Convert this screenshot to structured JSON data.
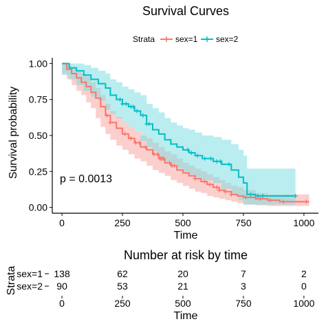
{
  "chart_data": [
    {
      "type": "line",
      "subtype": "kaplan-meier",
      "title": "Survival Curves",
      "xlabel": "Time",
      "ylabel": "Survival probability",
      "xlim": [
        -40,
        1060
      ],
      "ylim": [
        -0.04,
        1.04
      ],
      "xticks": [
        0,
        250,
        500,
        750,
        1000
      ],
      "yticks": [
        0.0,
        0.25,
        0.5,
        0.75,
        1.0
      ],
      "ytick_labels": [
        "0.00",
        "0.25",
        "0.50",
        "0.75",
        "1.00"
      ],
      "legend": {
        "title": "Strata",
        "position": "top"
      },
      "annotation": "p = 0.0013",
      "series": [
        {
          "name": "sex=1",
          "color": "#F8766D",
          "fill": "#F8A7A2",
          "steps": [
            [
              0,
              1.0
            ],
            [
              20,
              0.96
            ],
            [
              40,
              0.93
            ],
            [
              60,
              0.9
            ],
            [
              80,
              0.87
            ],
            [
              100,
              0.84
            ],
            [
              120,
              0.8
            ],
            [
              140,
              0.76
            ],
            [
              160,
              0.7
            ],
            [
              180,
              0.64
            ],
            [
              200,
              0.59
            ],
            [
              225,
              0.55
            ],
            [
              250,
              0.51
            ],
            [
              275,
              0.48
            ],
            [
              300,
              0.45
            ],
            [
              325,
              0.42
            ],
            [
              350,
              0.4
            ],
            [
              375,
              0.37
            ],
            [
              400,
              0.34
            ],
            [
              425,
              0.31
            ],
            [
              450,
              0.29
            ],
            [
              475,
              0.26
            ],
            [
              500,
              0.24
            ],
            [
              525,
              0.22
            ],
            [
              550,
              0.2
            ],
            [
              575,
              0.18
            ],
            [
              600,
              0.16
            ],
            [
              625,
              0.14
            ],
            [
              650,
              0.12
            ],
            [
              675,
              0.11
            ],
            [
              700,
              0.09
            ],
            [
              725,
              0.08
            ],
            [
              750,
              0.07
            ],
            [
              800,
              0.06
            ],
            [
              850,
              0.05
            ],
            [
              900,
              0.04
            ],
            [
              1022,
              0.04
            ]
          ],
          "lower": [
            [
              0,
              1.0
            ],
            [
              20,
              0.93
            ],
            [
              40,
              0.89
            ],
            [
              60,
              0.85
            ],
            [
              80,
              0.81
            ],
            [
              100,
              0.78
            ],
            [
              120,
              0.73
            ],
            [
              140,
              0.69
            ],
            [
              160,
              0.62
            ],
            [
              180,
              0.56
            ],
            [
              200,
              0.51
            ],
            [
              225,
              0.47
            ],
            [
              250,
              0.43
            ],
            [
              275,
              0.4
            ],
            [
              300,
              0.37
            ],
            [
              325,
              0.34
            ],
            [
              350,
              0.32
            ],
            [
              375,
              0.29
            ],
            [
              400,
              0.26
            ],
            [
              425,
              0.24
            ],
            [
              450,
              0.22
            ],
            [
              475,
              0.19
            ],
            [
              500,
              0.17
            ],
            [
              525,
              0.15
            ],
            [
              550,
              0.13
            ],
            [
              575,
              0.11
            ],
            [
              600,
              0.1
            ],
            [
              625,
              0.08
            ],
            [
              650,
              0.07
            ],
            [
              675,
              0.06
            ],
            [
              700,
              0.05
            ],
            [
              725,
              0.04
            ],
            [
              750,
              0.03
            ],
            [
              800,
              0.02
            ],
            [
              850,
              0.015
            ],
            [
              900,
              0.01
            ],
            [
              1022,
              0.01
            ]
          ],
          "upper": [
            [
              0,
              1.0
            ],
            [
              20,
              0.99
            ],
            [
              40,
              0.97
            ],
            [
              60,
              0.95
            ],
            [
              80,
              0.93
            ],
            [
              100,
              0.91
            ],
            [
              120,
              0.87
            ],
            [
              140,
              0.83
            ],
            [
              160,
              0.78
            ],
            [
              180,
              0.72
            ],
            [
              200,
              0.67
            ],
            [
              225,
              0.63
            ],
            [
              250,
              0.59
            ],
            [
              275,
              0.56
            ],
            [
              300,
              0.53
            ],
            [
              325,
              0.5
            ],
            [
              350,
              0.48
            ],
            [
              375,
              0.45
            ],
            [
              400,
              0.42
            ],
            [
              425,
              0.39
            ],
            [
              450,
              0.37
            ],
            [
              475,
              0.34
            ],
            [
              500,
              0.31
            ],
            [
              525,
              0.29
            ],
            [
              550,
              0.27
            ],
            [
              575,
              0.25
            ],
            [
              600,
              0.23
            ],
            [
              625,
              0.21
            ],
            [
              650,
              0.19
            ],
            [
              675,
              0.17
            ],
            [
              700,
              0.15
            ],
            [
              725,
              0.14
            ],
            [
              750,
              0.12
            ],
            [
              800,
              0.1
            ],
            [
              850,
              0.09
            ],
            [
              900,
              0.09
            ],
            [
              1022,
              0.09
            ]
          ],
          "censor_times": [
            186,
            200,
            260,
            285,
            305,
            320,
            345,
            380,
            395,
            405,
            410,
            415,
            420,
            445,
            455,
            465,
            550,
            590,
            610,
            640,
            650,
            675,
            700,
            760,
            820,
            860,
            915,
            1010
          ]
        },
        {
          "name": "sex=2",
          "color": "#00BFC4",
          "fill": "#7FDFE2",
          "steps": [
            [
              0,
              1.0
            ],
            [
              30,
              0.97
            ],
            [
              60,
              0.95
            ],
            [
              90,
              0.92
            ],
            [
              120,
              0.89
            ],
            [
              150,
              0.86
            ],
            [
              180,
              0.83
            ],
            [
              200,
              0.78
            ],
            [
              225,
              0.75
            ],
            [
              250,
              0.72
            ],
            [
              275,
              0.7
            ],
            [
              300,
              0.67
            ],
            [
              325,
              0.64
            ],
            [
              350,
              0.58
            ],
            [
              375,
              0.54
            ],
            [
              400,
              0.51
            ],
            [
              425,
              0.47
            ],
            [
              450,
              0.44
            ],
            [
              475,
              0.42
            ],
            [
              500,
              0.4
            ],
            [
              525,
              0.38
            ],
            [
              550,
              0.36
            ],
            [
              580,
              0.34
            ],
            [
              625,
              0.32
            ],
            [
              660,
              0.3
            ],
            [
              700,
              0.26
            ],
            [
              730,
              0.21
            ],
            [
              750,
              0.17
            ],
            [
              765,
              0.09
            ],
            [
              800,
              0.08
            ],
            [
              965,
              0.08
            ]
          ],
          "lower": [
            [
              0,
              1.0
            ],
            [
              30,
              0.92
            ],
            [
              60,
              0.89
            ],
            [
              90,
              0.85
            ],
            [
              120,
              0.81
            ],
            [
              150,
              0.77
            ],
            [
              180,
              0.74
            ],
            [
              200,
              0.68
            ],
            [
              225,
              0.65
            ],
            [
              250,
              0.62
            ],
            [
              275,
              0.59
            ],
            [
              300,
              0.56
            ],
            [
              325,
              0.53
            ],
            [
              350,
              0.46
            ],
            [
              375,
              0.42
            ],
            [
              400,
              0.39
            ],
            [
              425,
              0.35
            ],
            [
              450,
              0.32
            ],
            [
              475,
              0.3
            ],
            [
              500,
              0.27
            ],
            [
              525,
              0.25
            ],
            [
              550,
              0.23
            ],
            [
              580,
              0.21
            ],
            [
              625,
              0.19
            ],
            [
              660,
              0.17
            ],
            [
              700,
              0.13
            ],
            [
              730,
              0.09
            ],
            [
              750,
              0.05
            ],
            [
              765,
              0.02
            ],
            [
              800,
              0.02
            ],
            [
              965,
              0.02
            ]
          ],
          "upper": [
            [
              0,
              1.0
            ],
            [
              30,
              1.0
            ],
            [
              60,
              1.0
            ],
            [
              90,
              0.99
            ],
            [
              120,
              0.97
            ],
            [
              150,
              0.95
            ],
            [
              180,
              0.93
            ],
            [
              200,
              0.89
            ],
            [
              225,
              0.87
            ],
            [
              250,
              0.84
            ],
            [
              275,
              0.82
            ],
            [
              300,
              0.8
            ],
            [
              325,
              0.78
            ],
            [
              350,
              0.72
            ],
            [
              375,
              0.69
            ],
            [
              400,
              0.66
            ],
            [
              425,
              0.62
            ],
            [
              450,
              0.59
            ],
            [
              475,
              0.57
            ],
            [
              500,
              0.55
            ],
            [
              525,
              0.54
            ],
            [
              550,
              0.52
            ],
            [
              580,
              0.5
            ],
            [
              625,
              0.49
            ],
            [
              660,
              0.47
            ],
            [
              700,
              0.44
            ],
            [
              730,
              0.4
            ],
            [
              750,
              0.36
            ],
            [
              765,
              0.27
            ],
            [
              800,
              0.27
            ],
            [
              965,
              0.27
            ]
          ],
          "censor_times": [
            240,
            250,
            265,
            285,
            295,
            310,
            335,
            350,
            360,
            520,
            535,
            560,
            590,
            615,
            640,
            655,
            690,
            780,
            810,
            830,
            965
          ]
        }
      ]
    },
    {
      "type": "table",
      "title": "Number at risk by time",
      "xlabel": "Time",
      "ylabel": "Strata",
      "xticks": [
        0,
        250,
        500,
        750,
        1000
      ],
      "rows": [
        {
          "label": "sex=1",
          "values": [
            138,
            62,
            20,
            7,
            2
          ]
        },
        {
          "label": "sex=2",
          "values": [
            90,
            53,
            21,
            3,
            0
          ]
        }
      ]
    }
  ]
}
